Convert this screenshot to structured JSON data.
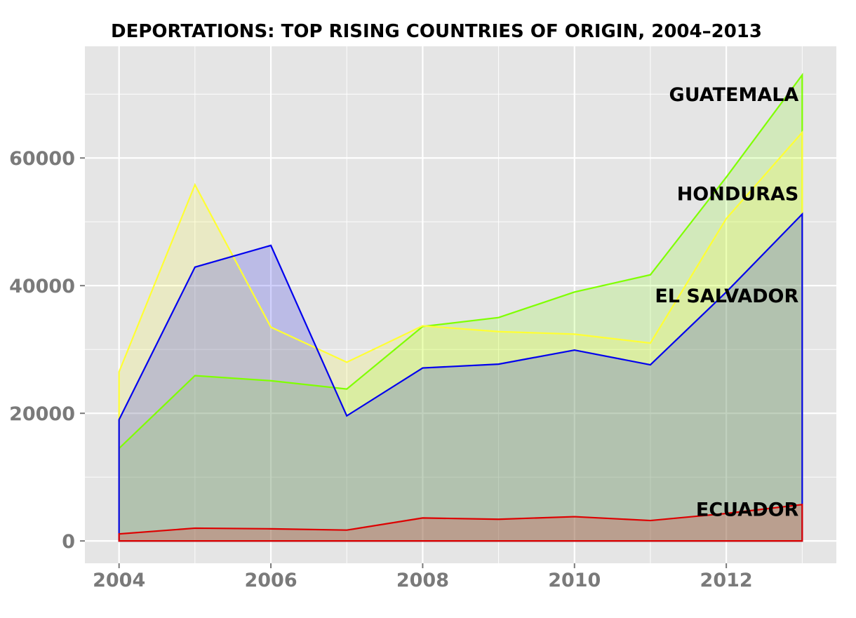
{
  "chart_data": {
    "type": "area",
    "title": "DEPORTATIONS: TOP RISING COUNTRIES OF ORIGIN, 2004–2013",
    "xlabel": "",
    "ylabel": "",
    "x": [
      2004,
      2005,
      2006,
      2007,
      2008,
      2009,
      2010,
      2011,
      2012,
      2013
    ],
    "xlim": [
      2003.55,
      2013.45
    ],
    "ylim": [
      -3500,
      77500
    ],
    "x_ticks": [
      2004,
      2006,
      2008,
      2010,
      2012
    ],
    "x_tick_labels": [
      "2004",
      "2006",
      "2008",
      "2010",
      "2012"
    ],
    "y_ticks": [
      0,
      20000,
      40000,
      60000
    ],
    "y_tick_labels": [
      "0",
      "20000",
      "40000",
      "60000"
    ],
    "grid": true,
    "legend": "none (direct labels at right end of series)",
    "series": [
      {
        "name": "GUATEMALA",
        "color": "#7fff00",
        "values": [
          14500,
          25900,
          25100,
          23800,
          33600,
          35000,
          39000,
          41700,
          57000,
          73000
        ]
      },
      {
        "name": "HONDURAS",
        "color": "#ffff33",
        "values": [
          26500,
          55800,
          33500,
          28000,
          33700,
          32800,
          32400,
          31000,
          50500,
          64000
        ]
      },
      {
        "name": "EL SALVADOR",
        "color": "#0000ee",
        "values": [
          19000,
          42900,
          46300,
          19600,
          27100,
          27700,
          29900,
          27600,
          39000,
          51200
        ]
      },
      {
        "name": "ECUADOR",
        "color": "#dd0000",
        "values": [
          1100,
          2000,
          1900,
          1700,
          3600,
          3400,
          3800,
          3200,
          4300,
          5700
        ]
      }
    ],
    "draw_order": [
      "GUATEMALA",
      "HONDURAS",
      "EL SALVADOR",
      "ECUADOR"
    ],
    "label_order": [
      "GUATEMALA",
      "HONDURAS",
      "EL SALVADOR",
      "ECUADOR"
    ],
    "panel_background": "#e5e5e5",
    "grid_color": "#ffffff"
  }
}
